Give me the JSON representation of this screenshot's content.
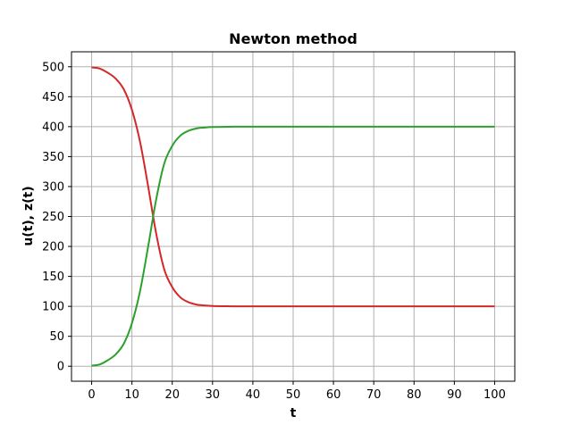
{
  "chart_data": {
    "type": "line",
    "title": "Newton method",
    "xlabel": "t",
    "ylabel": "u(t), z(t)",
    "xlim": [
      -5,
      105
    ],
    "ylim": [
      -25,
      525
    ],
    "xticks": [
      0,
      10,
      20,
      30,
      40,
      50,
      60,
      70,
      80,
      90,
      100
    ],
    "yticks": [
      0,
      50,
      100,
      150,
      200,
      250,
      300,
      350,
      400,
      450,
      500
    ],
    "grid": true,
    "x": [
      0,
      2,
      4,
      6,
      8,
      10,
      12,
      14,
      16,
      18,
      20,
      22,
      24,
      26,
      28,
      30,
      35,
      40,
      50,
      60,
      70,
      80,
      90,
      100
    ],
    "series": [
      {
        "color": "#d62728",
        "values": [
          499,
          497,
          490,
          480,
          462,
          428,
          375,
          301,
          222,
          162,
          132,
          115,
          107,
          103,
          101.5,
          100.6,
          100.1,
          100,
          100,
          100,
          100,
          100,
          100,
          100
        ]
      },
      {
        "color": "#2ca02c",
        "values": [
          1,
          3,
          10,
          20,
          38,
          72,
          125,
          199,
          278,
          338,
          368,
          385,
          393,
          397,
          398.5,
          399.4,
          399.9,
          400,
          400,
          400,
          400,
          400,
          400,
          400
        ]
      }
    ]
  }
}
